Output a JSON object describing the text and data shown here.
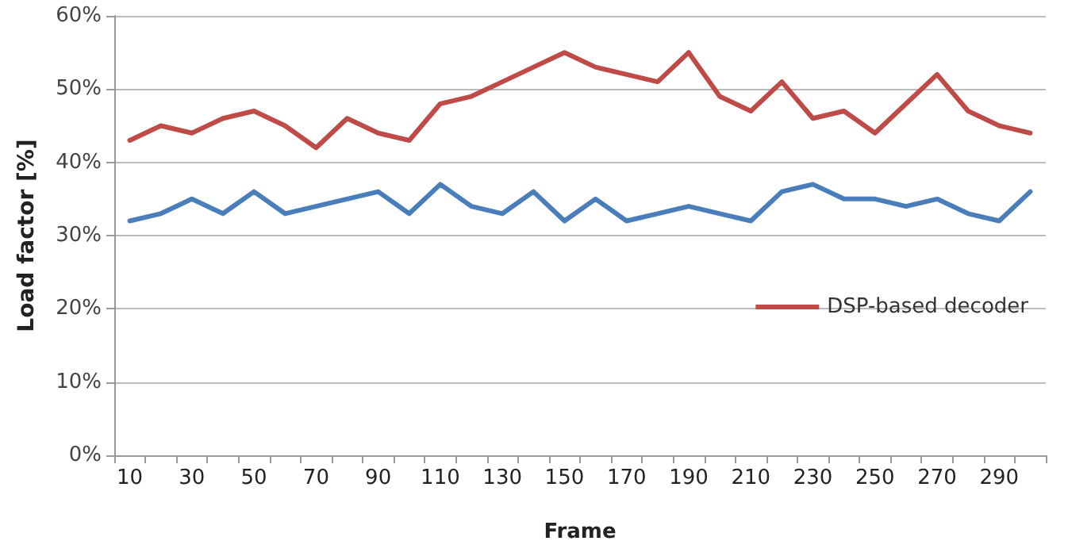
{
  "chart_data": {
    "type": "line",
    "xlabel": "Frame",
    "ylabel": "Load factor [%]",
    "categories": [
      "10",
      null,
      "30",
      null,
      "50",
      null,
      "70",
      null,
      "90",
      null,
      "110",
      null,
      "130",
      null,
      "150",
      null,
      "170",
      null,
      "190",
      null,
      "210",
      null,
      "230",
      null,
      "250",
      null,
      "270",
      null,
      "290",
      null
    ],
    "series": [
      {
        "color": "#4a7ebb",
        "values": [
          32,
          33,
          35,
          33,
          36,
          33,
          34,
          35,
          36,
          33,
          37,
          34,
          33,
          36,
          32,
          35,
          32,
          33,
          34,
          33,
          32,
          36,
          37,
          35,
          35,
          34,
          35,
          33,
          32,
          36
        ]
      },
      {
        "name": "DSP-based decoder",
        "color": "#be4b48",
        "values": [
          43,
          45,
          44,
          46,
          47,
          45,
          42,
          46,
          44,
          43,
          48,
          49,
          51,
          53,
          55,
          53,
          52,
          51,
          55,
          49,
          47,
          51,
          46,
          47,
          44,
          48,
          52,
          47,
          45,
          44
        ]
      }
    ],
    "ylim": [
      0,
      60
    ],
    "yticks": [
      {
        "value": 0,
        "label": "0%"
      },
      {
        "value": 10,
        "label": "10%"
      },
      {
        "value": 20,
        "label": "20%"
      },
      {
        "value": 30,
        "label": "30%"
      },
      {
        "value": 40,
        "label": "40%"
      },
      {
        "value": 50,
        "label": "50%"
      },
      {
        "value": 60,
        "label": "60%"
      }
    ],
    "grid": "y",
    "legend": "right",
    "marker": "none",
    "line_style": "solid"
  }
}
